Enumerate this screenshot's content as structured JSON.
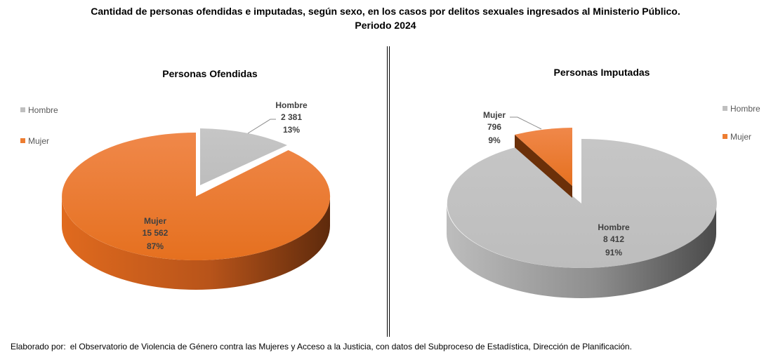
{
  "header": {
    "title_line1": "Cantidad de personas ofendidas e imputadas, según sexo, en los casos por delitos sexuales ingresados al Ministerio Público.",
    "title_line2": "Periodo 2024"
  },
  "footer": {
    "prefix": "Elaborado por:",
    "text": "el Observatorio de Violencia de Género contra las Mujeres y Acceso a la Justicia, con datos del Subproceso de Estadística, Dirección de Planificación."
  },
  "colors": {
    "hombre": "#c0c0c0",
    "mujer": "#ed7d31"
  },
  "chart_data": [
    {
      "type": "pie",
      "title": "Personas Ofendidas",
      "legend": [
        "Hombre",
        "Mujer"
      ],
      "legend_position": "left",
      "exploded": "Hombre",
      "slices": [
        {
          "label": "Hombre",
          "value": 2381,
          "value_text": "2 381",
          "percent_text": "13%"
        },
        {
          "label": "Mujer",
          "value": 15562,
          "value_text": "15 562",
          "percent_text": "87%"
        }
      ]
    },
    {
      "type": "pie",
      "title": "Personas Imputadas",
      "legend": [
        "Hombre",
        "Mujer"
      ],
      "legend_position": "right",
      "exploded": "Mujer",
      "slices": [
        {
          "label": "Hombre",
          "value": 8412,
          "value_text": "8 412",
          "percent_text": "91%"
        },
        {
          "label": "Mujer",
          "value": 796,
          "value_text": "796",
          "percent_text": "9%"
        }
      ]
    }
  ]
}
